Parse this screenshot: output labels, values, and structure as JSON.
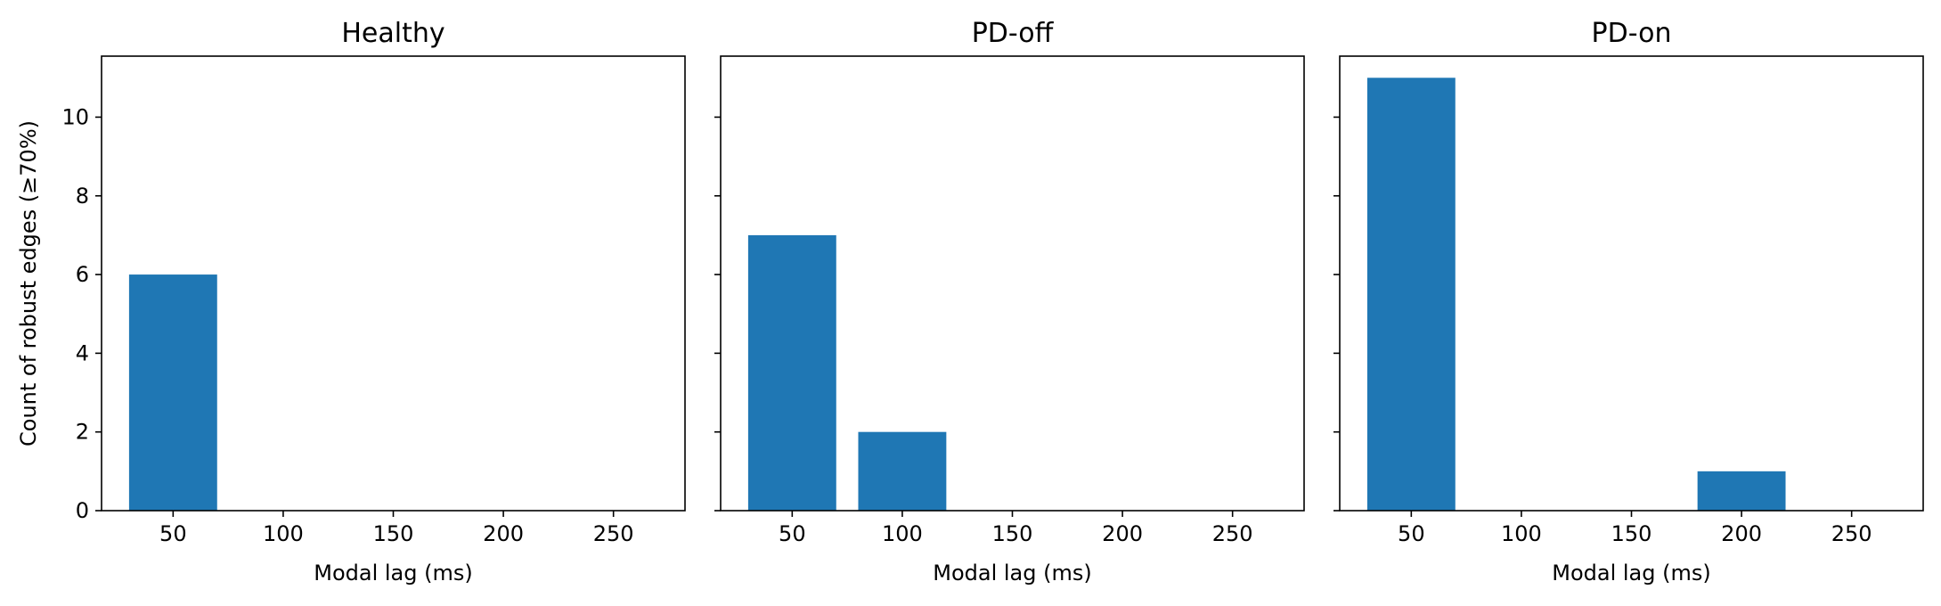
{
  "chart_data": [
    {
      "type": "bar",
      "title": "Healthy",
      "xlabel": "Modal lag (ms)",
      "ylabel": "Count of robust edges (≥70%)",
      "x": [
        50,
        100,
        150,
        200,
        250
      ],
      "values": [
        6,
        0,
        0,
        0,
        0
      ],
      "bar_width": 40,
      "xlim": [
        17.5,
        282.5
      ],
      "ylim": [
        0,
        11.55
      ],
      "xticks": [
        50,
        100,
        150,
        200,
        250
      ],
      "yticks": [
        0,
        2,
        4,
        6,
        8,
        10
      ],
      "color": "#1f77b4",
      "grid": false
    },
    {
      "type": "bar",
      "title": "PD-off",
      "xlabel": "Modal lag (ms)",
      "ylabel": "",
      "x": [
        50,
        100,
        150,
        200,
        250
      ],
      "values": [
        7,
        2,
        0,
        0,
        0
      ],
      "bar_width": 40,
      "xlim": [
        17.5,
        282.5
      ],
      "ylim": [
        0,
        11.55
      ],
      "xticks": [
        50,
        100,
        150,
        200,
        250
      ],
      "yticks": [
        0,
        2,
        4,
        6,
        8,
        10
      ],
      "color": "#1f77b4",
      "grid": false
    },
    {
      "type": "bar",
      "title": "PD-on",
      "xlabel": "Modal lag (ms)",
      "ylabel": "",
      "x": [
        50,
        100,
        150,
        200,
        250
      ],
      "values": [
        11,
        0,
        0,
        1,
        0
      ],
      "bar_width": 40,
      "xlim": [
        17.5,
        282.5
      ],
      "ylim": [
        0,
        11.55
      ],
      "xticks": [
        50,
        100,
        150,
        200,
        250
      ],
      "yticks": [
        0,
        2,
        4,
        6,
        8,
        10
      ],
      "color": "#1f77b4",
      "grid": false
    }
  ]
}
